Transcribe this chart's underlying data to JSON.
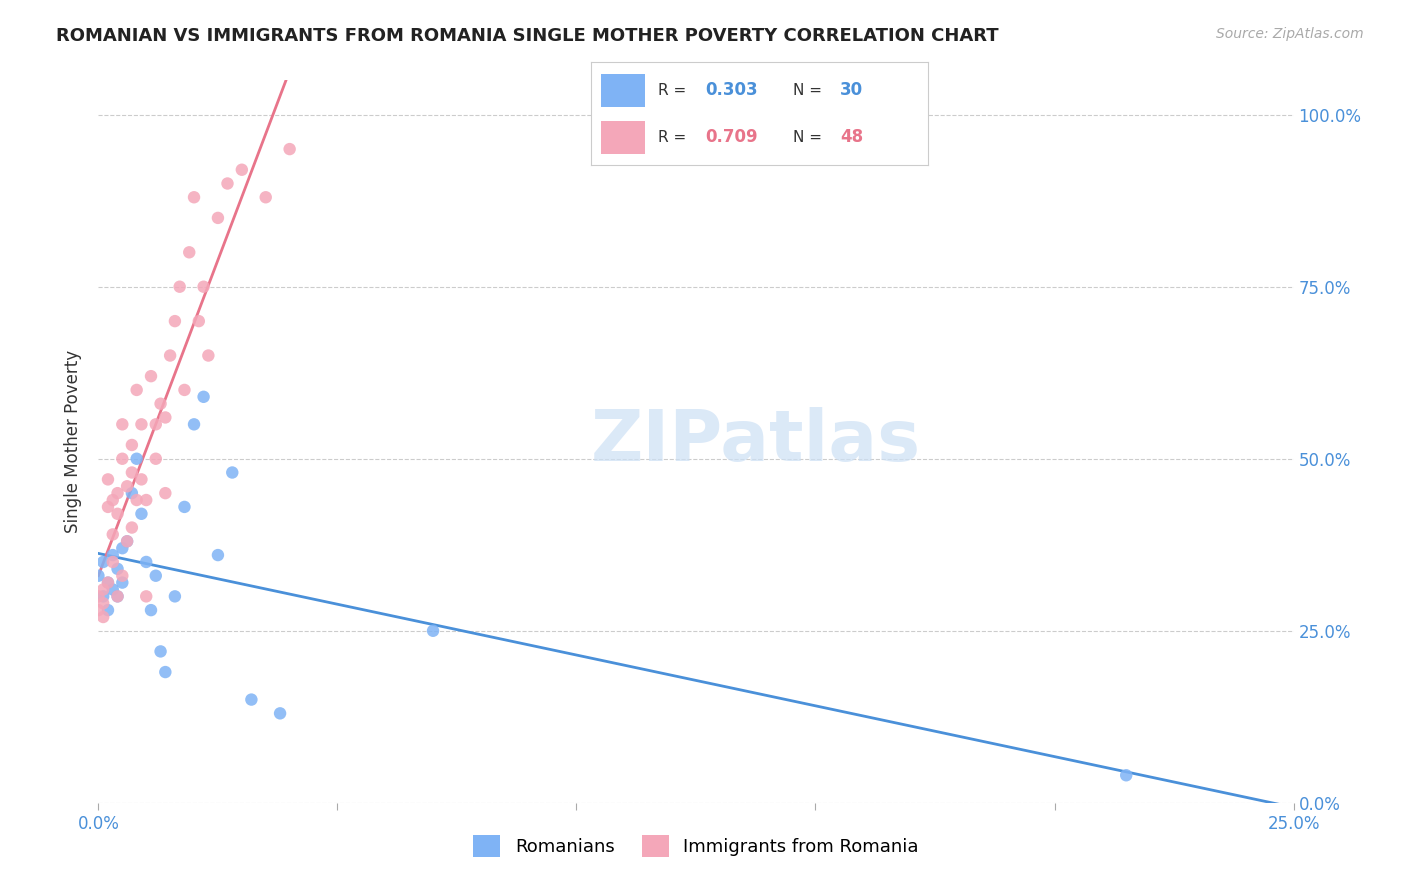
{
  "title": "ROMANIAN VS IMMIGRANTS FROM ROMANIA SINGLE MOTHER POVERTY CORRELATION CHART",
  "source": "Source: ZipAtlas.com",
  "ylabel": "Single Mother Poverty",
  "watermark": "ZIPatlas",
  "legend_blue_r": "0.303",
  "legend_blue_n": "30",
  "legend_pink_r": "0.709",
  "legend_pink_n": "48",
  "legend_blue_label": "Romanians",
  "legend_pink_label": "Immigrants from Romania",
  "blue_color": "#7fb3f5",
  "pink_color": "#f4a7b9",
  "blue_line_color": "#4a90d9",
  "pink_line_color": "#e8748a",
  "background_color": "#ffffff",
  "blue_points_x": [
    0.0,
    0.001,
    0.001,
    0.002,
    0.002,
    0.003,
    0.003,
    0.004,
    0.004,
    0.005,
    0.005,
    0.006,
    0.007,
    0.008,
    0.009,
    0.01,
    0.011,
    0.012,
    0.013,
    0.014,
    0.016,
    0.018,
    0.02,
    0.022,
    0.025,
    0.028,
    0.032,
    0.038,
    0.07,
    0.215
  ],
  "blue_points_y": [
    0.33,
    0.3,
    0.35,
    0.32,
    0.28,
    0.31,
    0.36,
    0.34,
    0.3,
    0.32,
    0.37,
    0.38,
    0.45,
    0.5,
    0.42,
    0.35,
    0.28,
    0.33,
    0.22,
    0.19,
    0.3,
    0.43,
    0.55,
    0.59,
    0.36,
    0.48,
    0.15,
    0.13,
    0.25,
    0.04
  ],
  "pink_points_x": [
    0.0,
    0.0,
    0.001,
    0.001,
    0.001,
    0.002,
    0.002,
    0.002,
    0.003,
    0.003,
    0.003,
    0.004,
    0.004,
    0.004,
    0.005,
    0.005,
    0.005,
    0.006,
    0.006,
    0.007,
    0.007,
    0.007,
    0.008,
    0.008,
    0.009,
    0.009,
    0.01,
    0.01,
    0.011,
    0.012,
    0.012,
    0.013,
    0.014,
    0.014,
    0.015,
    0.016,
    0.017,
    0.018,
    0.019,
    0.02,
    0.021,
    0.022,
    0.023,
    0.025,
    0.027,
    0.03,
    0.035,
    0.04
  ],
  "pink_points_y": [
    0.28,
    0.3,
    0.31,
    0.29,
    0.27,
    0.32,
    0.43,
    0.47,
    0.35,
    0.39,
    0.44,
    0.3,
    0.42,
    0.45,
    0.33,
    0.5,
    0.55,
    0.38,
    0.46,
    0.4,
    0.48,
    0.52,
    0.44,
    0.6,
    0.47,
    0.55,
    0.3,
    0.44,
    0.62,
    0.5,
    0.55,
    0.58,
    0.45,
    0.56,
    0.65,
    0.7,
    0.75,
    0.6,
    0.8,
    0.88,
    0.7,
    0.75,
    0.65,
    0.85,
    0.9,
    0.92,
    0.88,
    0.95
  ],
  "xlim": [
    0.0,
    0.25
  ],
  "ylim": [
    0.0,
    1.05
  ],
  "xtick_vals": [
    0.0,
    0.05,
    0.1,
    0.15,
    0.2,
    0.25
  ],
  "ytick_vals": [
    0.0,
    0.25,
    0.5,
    0.75,
    1.0
  ],
  "ytick_labels": [
    "0.0%",
    "25.0%",
    "50.0%",
    "75.0%",
    "100.0%"
  ]
}
